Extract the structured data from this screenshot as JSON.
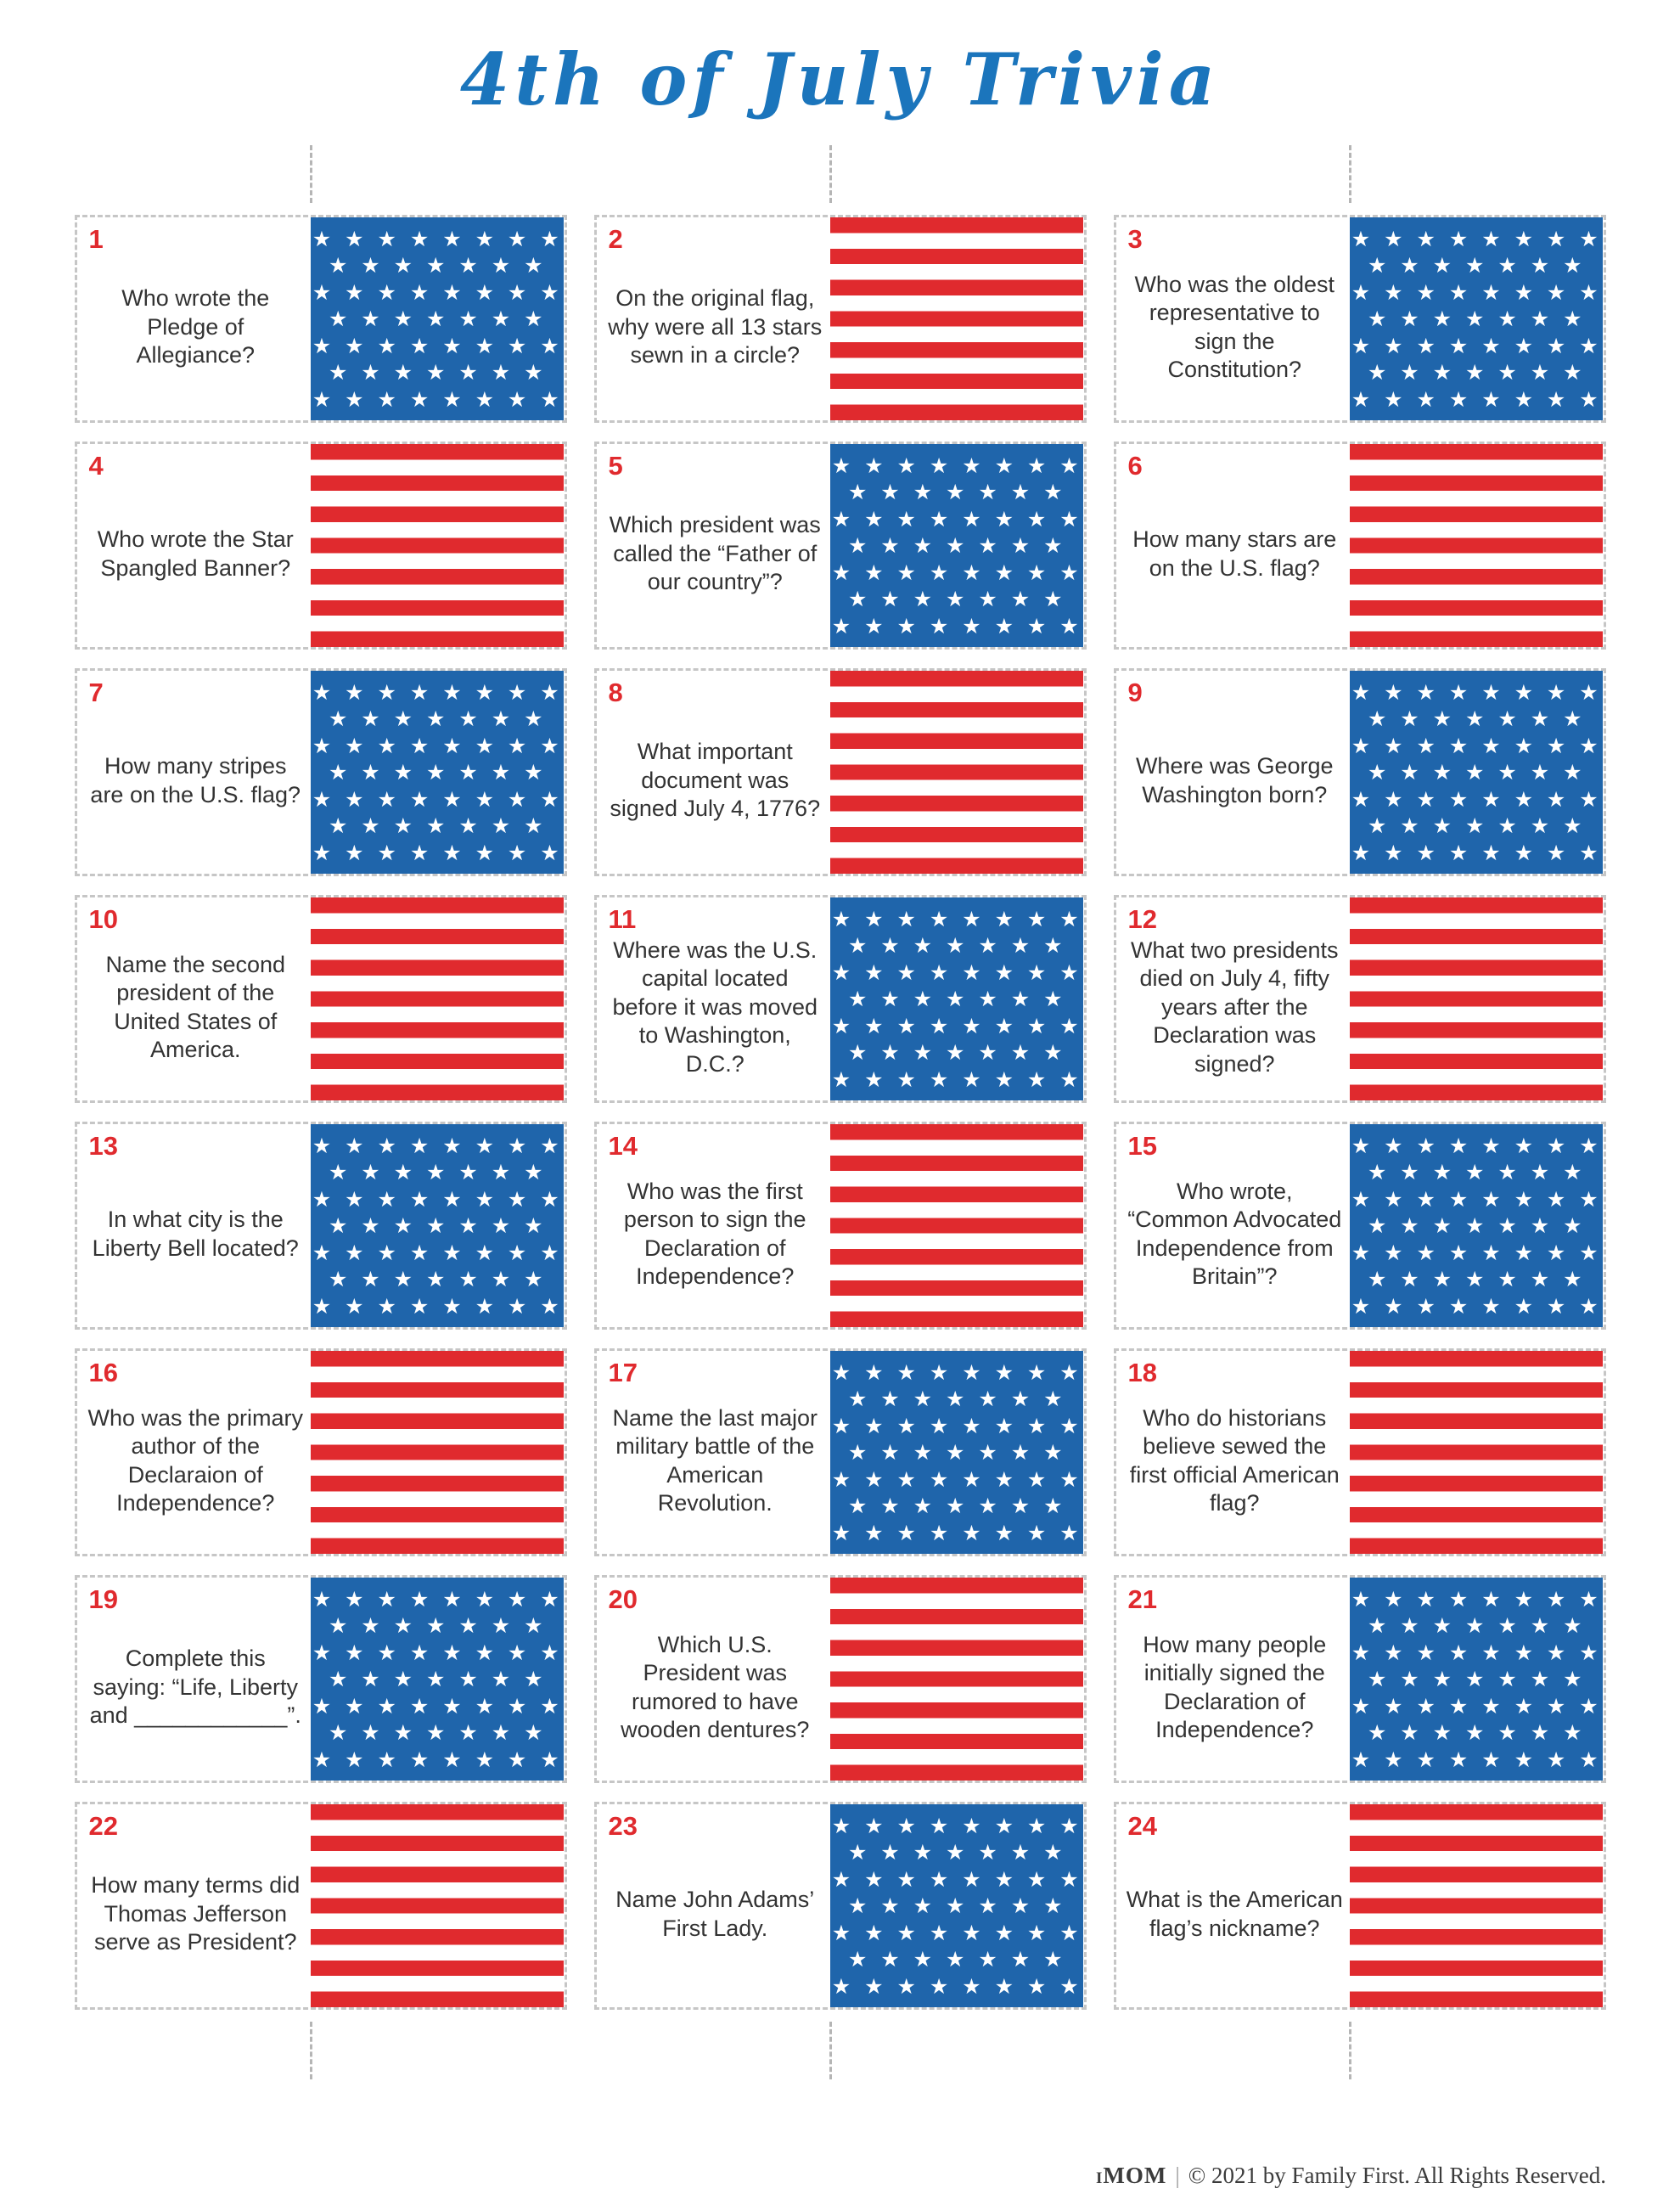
{
  "title": "4th of July Trivia",
  "footer": {
    "brand": "iMOM",
    "separator": "|",
    "copyright": "© 2021 by Family First. All Rights Reserved."
  },
  "colors": {
    "red": "#e02a2e",
    "blue": "#1f65ab",
    "title_blue": "#1b75bc"
  },
  "flag": {
    "star_glyph": "★",
    "star_rows": 7,
    "stars_per_row_a": 8,
    "stars_per_row_b": 7
  },
  "cards": [
    {
      "num": "1",
      "question": "Who wrote the Pledge of Allegiance?",
      "panel": "stars"
    },
    {
      "num": "2",
      "question": "On the original flag, why were all 13 stars sewn in a circle?",
      "panel": "stripes"
    },
    {
      "num": "3",
      "question": "Who was the oldest representative to sign the Constitution?",
      "panel": "stars"
    },
    {
      "num": "4",
      "question": "Who wrote the Star Spangled Banner?",
      "panel": "stripes"
    },
    {
      "num": "5",
      "question": "Which president was called the “Father of our country”?",
      "panel": "stars"
    },
    {
      "num": "6",
      "question": "How many stars are on the U.S. flag?",
      "panel": "stripes"
    },
    {
      "num": "7",
      "question": "How many stripes are on the U.S. flag?",
      "panel": "stars"
    },
    {
      "num": "8",
      "question": "What important document was signed July 4, 1776?",
      "panel": "stripes"
    },
    {
      "num": "9",
      "question": "Where was George Washington born?",
      "panel": "stars"
    },
    {
      "num": "10",
      "question": "Name the second president of the United States of America.",
      "panel": "stripes"
    },
    {
      "num": "11",
      "question": "Where was the U.S. capital located before it was moved to Washington, D.C.?",
      "panel": "stars"
    },
    {
      "num": "12",
      "question": "What two presidents died on July 4, fifty years after the Declaration was signed?",
      "panel": "stripes"
    },
    {
      "num": "13",
      "question": "In what city is the Liberty Bell located?",
      "panel": "stars"
    },
    {
      "num": "14",
      "question": "Who was the first person to sign the Declaration of Independence?",
      "panel": "stripes"
    },
    {
      "num": "15",
      "question": "Who wrote, “Common Advocated Independence from Britain”?",
      "panel": "stars"
    },
    {
      "num": "16",
      "question": "Who was the primary author of the Declaraion of Independence?",
      "panel": "stripes"
    },
    {
      "num": "17",
      "question": "Name the last major military battle of the American Revolution.",
      "panel": "stars"
    },
    {
      "num": "18",
      "question": "Who do historians believe sewed the first official American flag?",
      "panel": "stripes"
    },
    {
      "num": "19",
      "question": "Complete this saying: “Life, Liberty and ____________”.",
      "panel": "stars"
    },
    {
      "num": "20",
      "question": "Which U.S. President was rumored to have wooden dentures?",
      "panel": "stripes"
    },
    {
      "num": "21",
      "question": "How many people initially signed the Declaration of Independence?",
      "panel": "stars"
    },
    {
      "num": "22",
      "question": "How many terms did Thomas Jefferson serve as President?",
      "panel": "stripes"
    },
    {
      "num": "23",
      "question": "Name John Adams’ First Lady.",
      "panel": "stars"
    },
    {
      "num": "24",
      "question": "What is the American flag’s nickname?",
      "panel": "stripes"
    }
  ]
}
